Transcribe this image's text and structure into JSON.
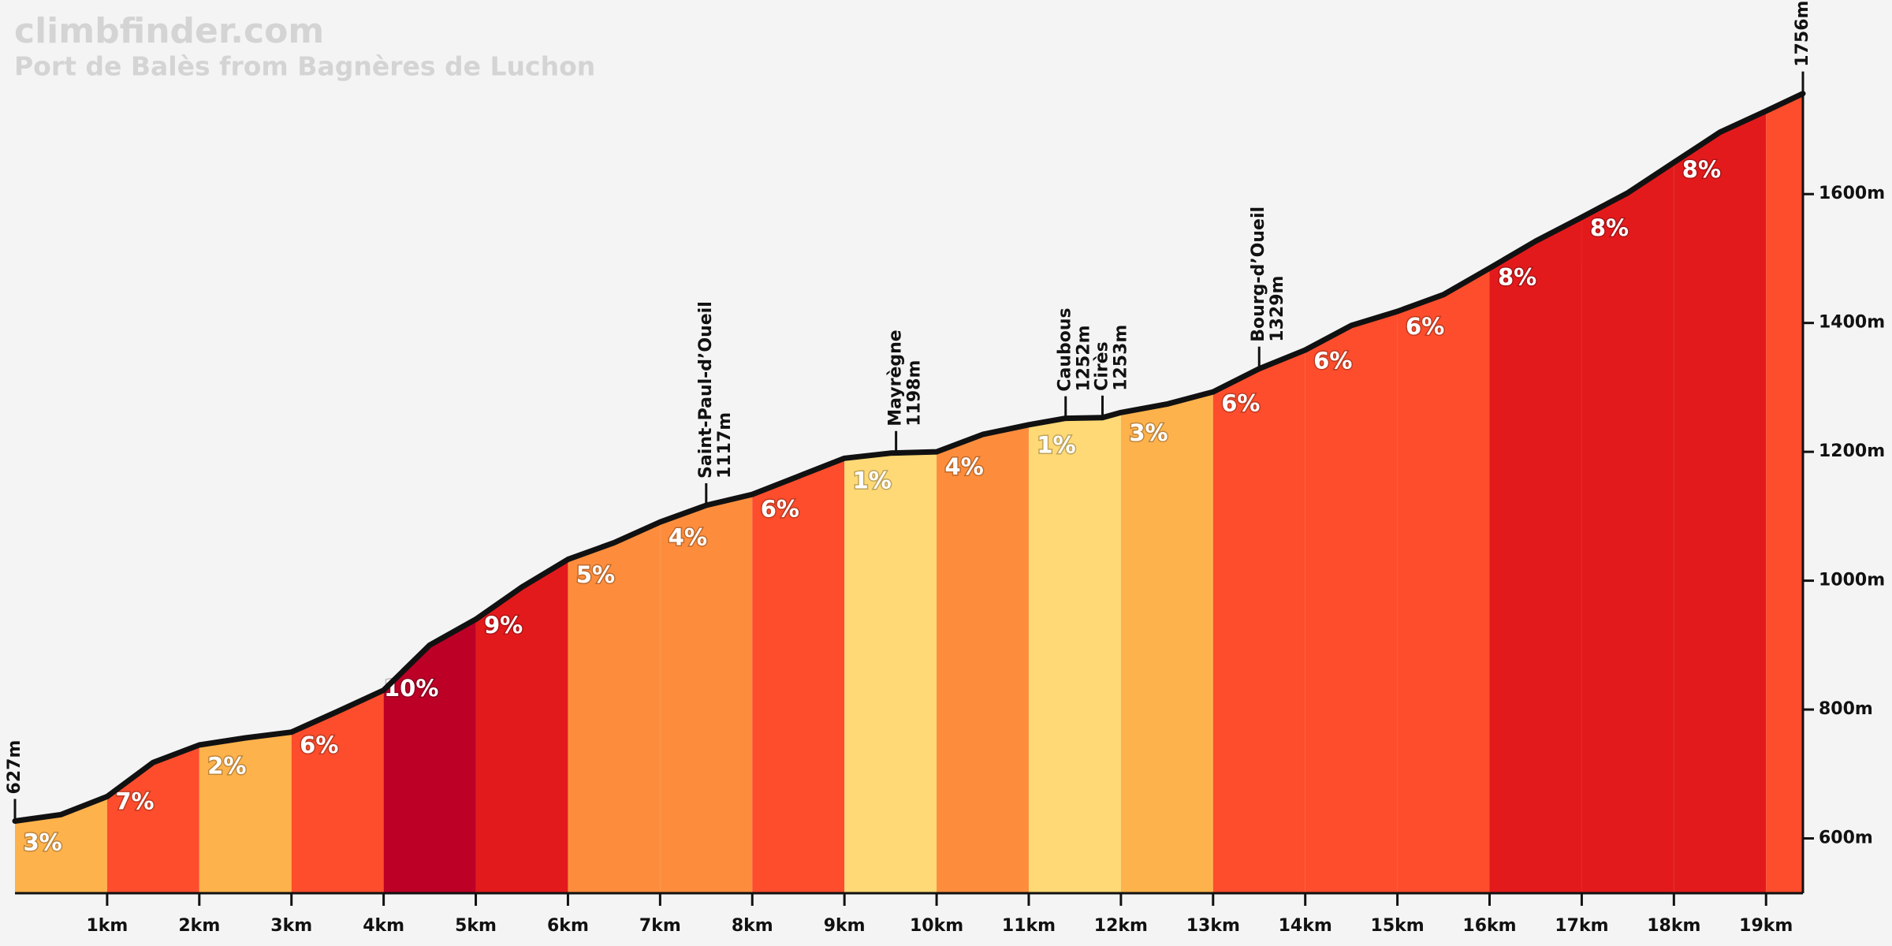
{
  "chart_data": {
    "type": "area",
    "title": "climbfinder.com",
    "subtitle": "Port de Balès from Bagnères de Luchon",
    "x": [
      0,
      0.5,
      1,
      1.5,
      2,
      2.5,
      3,
      3.5,
      4,
      4.5,
      5,
      5.5,
      6,
      6.5,
      7,
      7.5,
      8,
      8.5,
      9,
      9.5,
      10,
      10.5,
      11,
      11.4,
      11.8,
      12,
      12.5,
      13,
      13.5,
      14,
      14.5,
      15,
      15.5,
      16,
      16.5,
      17,
      17.5,
      18,
      18.5,
      19,
      19.4
    ],
    "values": [
      627,
      637,
      665,
      718,
      745,
      756,
      765,
      797,
      830,
      900,
      940,
      990,
      1033,
      1059,
      1091,
      1117,
      1134,
      1162,
      1190,
      1198,
      1200,
      1227,
      1242,
      1252,
      1253,
      1261,
      1274,
      1293,
      1329,
      1358,
      1396,
      1418,
      1444,
      1485,
      1527,
      1564,
      1602,
      1649,
      1696,
      1729,
      1756
    ],
    "line_color": "#111111",
    "segments": {
      "bins": [
        0,
        1,
        2,
        3,
        4,
        5,
        6,
        7,
        8,
        9,
        10,
        11,
        12,
        13,
        14,
        15,
        16,
        17,
        18,
        19,
        19.4
      ],
      "values": [
        3,
        7,
        2,
        6,
        10,
        9,
        5,
        4,
        6,
        1,
        4,
        1,
        3,
        6,
        6,
        6,
        8,
        8,
        8,
        null
      ],
      "value_labels": [
        "3%",
        "7%",
        "2%",
        "6%",
        "10%",
        "9%",
        "5%",
        "4%",
        "6%",
        "1%",
        "4%",
        "1%",
        "3%",
        "6%",
        "6%",
        "6%",
        "8%",
        "8%",
        "8%",
        null
      ],
      "colors": [
        "#feb24c",
        "#fd4d2c",
        "#feb24c",
        "#fd4d2c",
        "#bd0026",
        "#e31a1c",
        "#fd8d3c",
        "#fd8d3c",
        "#fd4d2c",
        "#fed976",
        "#fd8d3c",
        "#fed976",
        "#feb24c",
        "#fd4d2c",
        "#fd4d2c",
        "#fd4d2c",
        "#e31a1c",
        "#e31a1c",
        "#e31a1c",
        "#fd4d2c"
      ]
    },
    "annotations": [
      {
        "x": 0,
        "elevation": 627,
        "elevation_label": "627m"
      },
      {
        "x": 7.5,
        "elevation": 1117,
        "name": "Saint-Paul-d’Oueil",
        "elevation_label": "1117m"
      },
      {
        "x": 9.56,
        "elevation": 1198,
        "name": "Mayrègne",
        "elevation_label": "1198m"
      },
      {
        "x": 11.4,
        "elevation": 1252,
        "name": "Caubous",
        "elevation_label": "1252m"
      },
      {
        "x": 11.8,
        "elevation": 1253,
        "name": "Cirès",
        "elevation_label": "1253m"
      },
      {
        "x": 13.5,
        "elevation": 1329,
        "name": "Bourg-d’Oueil",
        "elevation_label": "1329m"
      },
      {
        "x": 19.4,
        "elevation": 1756,
        "elevation_label": "1756m"
      }
    ],
    "xlim": [
      0,
      19.4
    ],
    "ylim": [
      515,
      1900
    ],
    "xticks": [
      {
        "value": 1,
        "label": "1km"
      },
      {
        "value": 2,
        "label": "2km"
      },
      {
        "value": 3,
        "label": "3km"
      },
      {
        "value": 4,
        "label": "4km"
      },
      {
        "value": 5,
        "label": "5km"
      },
      {
        "value": 6,
        "label": "6km"
      },
      {
        "value": 7,
        "label": "7km"
      },
      {
        "value": 8,
        "label": "8km"
      },
      {
        "value": 9,
        "label": "9km"
      },
      {
        "value": 10,
        "label": "10km"
      },
      {
        "value": 11,
        "label": "11km"
      },
      {
        "value": 12,
        "label": "12km"
      },
      {
        "value": 13,
        "label": "13km"
      },
      {
        "value": 14,
        "label": "14km"
      },
      {
        "value": 15,
        "label": "15km"
      },
      {
        "value": 16,
        "label": "16km"
      },
      {
        "value": 17,
        "label": "17km"
      },
      {
        "value": 18,
        "label": "18km"
      },
      {
        "value": 19,
        "label": "19km"
      }
    ],
    "yticks": [
      {
        "value": 600,
        "label": "600m"
      },
      {
        "value": 800,
        "label": "800m"
      },
      {
        "value": 1000,
        "label": "1000m"
      },
      {
        "value": 1200,
        "label": "1200m"
      },
      {
        "value": 1400,
        "label": "1400m"
      },
      {
        "value": 1600,
        "label": "1600m"
      }
    ]
  }
}
